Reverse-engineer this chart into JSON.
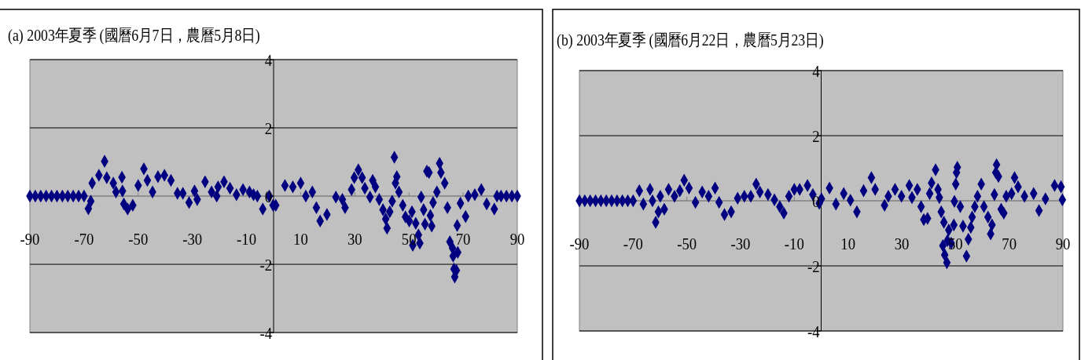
{
  "chart_data": [
    {
      "type": "scatter",
      "title": "(a) 2003年夏季 (國曆6月7日，農曆5月8日)",
      "color": "#000080",
      "marker": "diamond",
      "grid": "y",
      "xlim": [
        -90,
        90
      ],
      "ylim": [
        -4,
        4
      ],
      "xticks": [
        -90,
        -70,
        -50,
        -30,
        -10,
        10,
        30,
        50,
        70,
        90
      ],
      "yticks": [
        -4,
        -2,
        0,
        2,
        4
      ],
      "x": [
        -90,
        -88,
        -86,
        -84,
        -82,
        -80,
        -78,
        -76,
        -74,
        -72,
        -70,
        -68.4,
        -67.5,
        -67,
        -64.5,
        -62.4,
        -61.6,
        -59.2,
        -58.2,
        -56,
        -55.8,
        -55.3,
        -53.9,
        -52,
        -50,
        -47.9,
        -46.6,
        -44.7,
        -42.7,
        -40.3,
        -37.9,
        -35.5,
        -33.5,
        -31.2,
        -29.2,
        -28.2,
        -25.3,
        -22.9,
        -21,
        -20.5,
        -18.3,
        -16.1,
        -13.7,
        -11.3,
        -8.9,
        -7.4,
        -6,
        -4,
        -1.6,
        -0.2,
        0.8,
        4.2,
        7.1,
        10,
        11.9,
        14.3,
        15.8,
        17.2,
        19.7,
        23,
        25.4,
        26.4,
        28.8,
        29.8,
        31.3,
        32.7,
        33.7,
        35.6,
        36.6,
        37.6,
        39,
        40.4,
        41.4,
        41.9,
        42.9,
        43.8,
        44.6,
        45,
        45.5,
        46.3,
        47.7,
        48.7,
        50.1,
        51.1,
        51.4,
        52.5,
        53.5,
        54,
        54.5,
        55.4,
        55.9,
        56.6,
        57.4,
        57.9,
        58.4,
        58.9,
        60.3,
        61.3,
        61.8,
        63.2,
        64.2,
        65.1,
        66.1,
        66.3,
        66.6,
        66.9,
        67.5,
        68,
        67.8,
        69,
        70.9,
        71.9,
        74.3,
        76.7,
        78.7,
        81.5,
        82.5,
        84,
        86,
        88,
        90
      ],
      "values": [
        0,
        0,
        0,
        0,
        0,
        0,
        0,
        0,
        0,
        0,
        0,
        -0.37,
        -0.15,
        0.38,
        0.61,
        1.02,
        0.54,
        0.38,
        0.12,
        0.55,
        0.15,
        -0.23,
        -0.38,
        -0.27,
        0.31,
        0.8,
        0.46,
        0.12,
        0.57,
        0.61,
        0.46,
        0.08,
        0.08,
        -0.19,
        0.15,
        -0.1,
        0.42,
        0.12,
        0,
        0.27,
        0.42,
        0.23,
        0.04,
        0.19,
        0.12,
        0.04,
        0,
        -0.38,
        0,
        -0.27,
        -0.27,
        0.31,
        0.27,
        0.38,
        0,
        0.12,
        -0.34,
        -0.73,
        -0.54,
        -0.03,
        -0.1,
        -0.34,
        0.19,
        0.54,
        0.77,
        0.54,
        0.23,
        -0.03,
        0.46,
        0.27,
        -0.1,
        -0.4,
        -0.67,
        -0.94,
        -0.46,
        -0.15,
        1.14,
        0.38,
        0.57,
        0.12,
        -0.27,
        -0.61,
        -0.73,
        -0.46,
        -1.44,
        -0.8,
        -1.14,
        -1.38,
        -0.03,
        -0.4,
        -0.82,
        0.73,
        0.69,
        -0.57,
        -0.88,
        -0.19,
        0.12,
        0.96,
        0.69,
        0.38,
        -0.34,
        -1.34,
        -1.53,
        -1.76,
        -2.14,
        -2.37,
        -2.18,
        -1.65,
        -0.86,
        -0.21,
        -0.6,
        0,
        0.04,
        0.19,
        -0.23,
        -0.38,
        0,
        0,
        0,
        0,
        0
      ]
    },
    {
      "type": "scatter",
      "title": "(b) 2003年夏季 (國曆6月22日，農曆5月23日)",
      "color": "#000080",
      "marker": "diamond",
      "grid": "y",
      "xlim": [
        -90,
        90
      ],
      "ylim": [
        -4,
        4
      ],
      "xticks": [
        -90,
        -70,
        -50,
        -30,
        -10,
        10,
        30,
        50,
        70,
        90
      ],
      "yticks": [
        -4,
        -2,
        0,
        2,
        4
      ],
      "x": [
        -90,
        -88,
        -86,
        -84,
        -82,
        -80,
        -78,
        -76,
        -74,
        -72,
        -70,
        -67.7,
        -66.2,
        -63.7,
        -62.8,
        -61.6,
        -60.6,
        -59.9,
        -58.4,
        -56.8,
        -54.6,
        -52.6,
        -51,
        -49.2,
        -46.8,
        -44.3,
        -41.9,
        -39.5,
        -38,
        -36,
        -33.5,
        -31.1,
        -28.6,
        -26.2,
        -24.2,
        -22.8,
        -19.8,
        -17.4,
        -15.4,
        -13.9,
        -12,
        -10,
        -8,
        -5.1,
        -3.1,
        -0.7,
        0.1,
        3.1,
        5.5,
        8.4,
        10.9,
        13.3,
        15.8,
        18.7,
        20.1,
        23.6,
        25,
        27.5,
        29.9,
        32.8,
        33.8,
        35.8,
        37.2,
        38.2,
        39.6,
        40.4,
        41.1,
        42.6,
        43.5,
        44,
        44.7,
        45.3,
        45.7,
        46,
        46.8,
        47,
        47.5,
        48.4,
        49.4,
        49.6,
        50.1,
        50.4,
        50.7,
        51.8,
        52.8,
        54.1,
        54.8,
        55.7,
        56.2,
        57.2,
        58.2,
        59.6,
        60.6,
        62.1,
        63.1,
        63.6,
        64.5,
        65,
        65.3,
        66,
        67,
        68,
        68.9,
        70.9,
        72,
        73.3,
        75.7,
        79.1,
        81.1,
        83.5,
        86.9,
        89.3,
        89.8
      ],
      "values": [
        0,
        0,
        0,
        0,
        0,
        0,
        0,
        0,
        0,
        0,
        0,
        0.31,
        -0.1,
        0.35,
        0,
        -0.66,
        -0.34,
        0.14,
        -0.26,
        0.35,
        0.14,
        0.31,
        0.63,
        0.39,
        -0.05,
        0.27,
        0.14,
        0.39,
        -0.05,
        -0.42,
        -0.34,
        0.08,
        0.14,
        0.14,
        0.51,
        0.27,
        0.19,
        0.03,
        -0.18,
        -0.38,
        0.14,
        0.35,
        0.35,
        0.47,
        0.19,
        -0.08,
        0.06,
        0.39,
        -0.1,
        0.22,
        0.02,
        -0.34,
        0.31,
        0.71,
        0.35,
        -0.14,
        0.14,
        0.35,
        0.14,
        0.47,
        0.1,
        0.35,
        -0.18,
        -0.58,
        -0.54,
        0.22,
        0.55,
        0.95,
        0.35,
        0.1,
        -0.34,
        -1.38,
        -0.66,
        -1.66,
        -1.9,
        -1.22,
        -0.9,
        -1.3,
        -0.74,
        -0.02,
        0.51,
        0.87,
        1.03,
        -0.18,
        -0.78,
        -1.7,
        -1.18,
        -0.82,
        -0.5,
        -0.18,
        0.14,
        0.51,
        -0.18,
        -0.5,
        -1.02,
        -0.74,
        0.19,
        0.87,
        1.11,
        0.75,
        -0.26,
        -0.38,
        0.14,
        0.22,
        0.71,
        0.43,
        0.14,
        0.22,
        -0.3,
        0.06,
        0.47,
        0.43,
        0.03
      ]
    }
  ]
}
